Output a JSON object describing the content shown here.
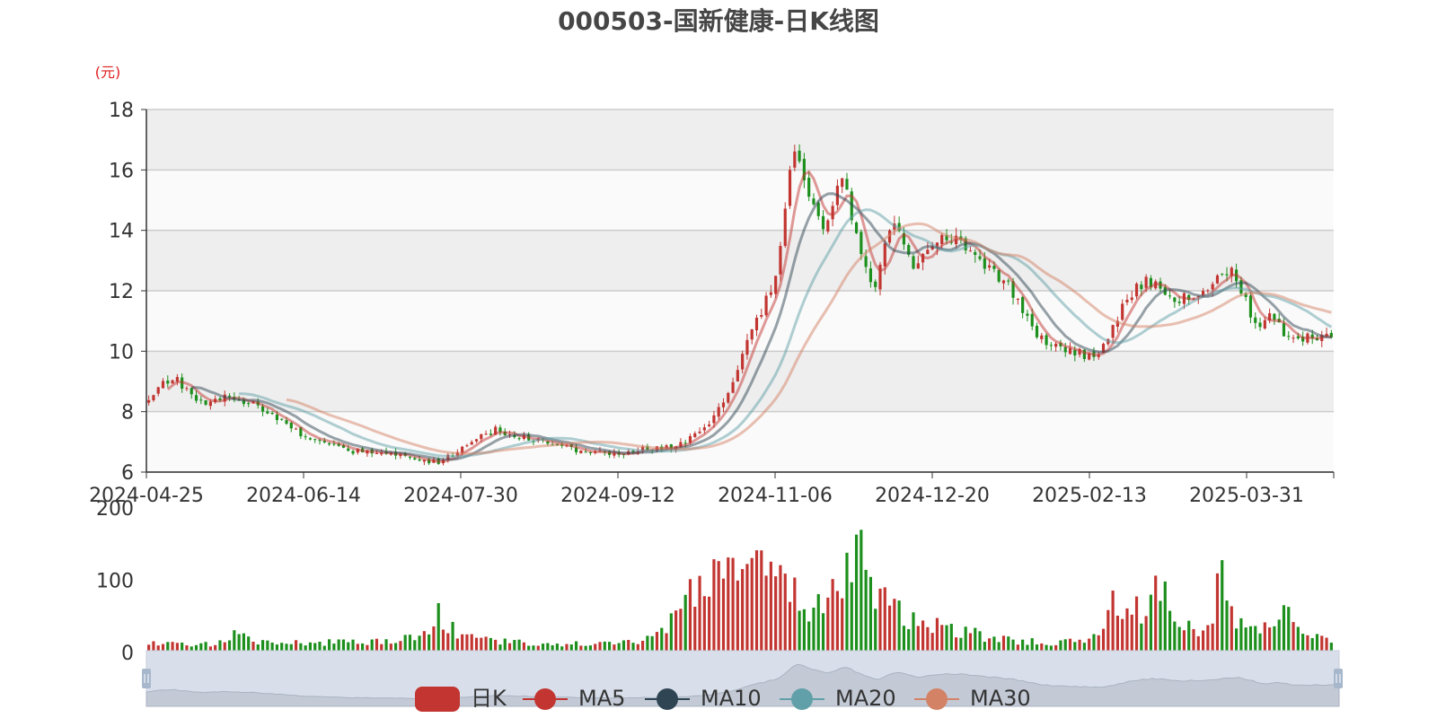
{
  "chart_data": {
    "type": "candlestick",
    "title": "000503-国新健康-日K线图",
    "price_unit": "(元)",
    "price_ylim": [
      6,
      18
    ],
    "price_yticks": [
      "6",
      "8",
      "10",
      "12",
      "14",
      "16",
      "18"
    ],
    "volume_ylim": [
      0,
      200
    ],
    "volume_yticks": [
      "0",
      "100",
      "200"
    ],
    "x_ticks": [
      "2024-04-25",
      "2024-06-14",
      "2024-07-30",
      "2024-09-12",
      "2024-11-06",
      "2024-12-20",
      "2025-02-13",
      "2025-03-31"
    ],
    "up_color": "#c23531",
    "down_color": "#1c8f1c",
    "legend": [
      {
        "name": "日K",
        "color": "#c23531"
      },
      {
        "name": "MA5",
        "color": "#c23531"
      },
      {
        "name": "MA10",
        "color": "#2f4554"
      },
      {
        "name": "MA20",
        "color": "#61a0a8"
      },
      {
        "name": "MA30",
        "color": "#d48265"
      }
    ],
    "close_path": [
      [
        0,
        8.4
      ],
      [
        7,
        9.2
      ],
      [
        15,
        8.3
      ],
      [
        25,
        8.5
      ],
      [
        33,
        8.2
      ],
      [
        45,
        7.3
      ],
      [
        60,
        6.7
      ],
      [
        75,
        6.6
      ],
      [
        88,
        6.3
      ],
      [
        96,
        6.9
      ],
      [
        105,
        7.4
      ],
      [
        115,
        7.1
      ],
      [
        125,
        6.8
      ],
      [
        140,
        6.6
      ],
      [
        160,
        6.9
      ],
      [
        168,
        7.4
      ],
      [
        175,
        8.5
      ],
      [
        183,
        10.8
      ],
      [
        190,
        12.4
      ],
      [
        195,
        16.6
      ],
      [
        200,
        15.3
      ],
      [
        205,
        14.0
      ],
      [
        210,
        15.8
      ],
      [
        215,
        13.5
      ],
      [
        220,
        12.0
      ],
      [
        225,
        14.4
      ],
      [
        232,
        12.8
      ],
      [
        240,
        14.0
      ],
      [
        250,
        13.2
      ],
      [
        260,
        12.2
      ],
      [
        270,
        10.4
      ],
      [
        285,
        9.8
      ],
      [
        290,
        10.2
      ],
      [
        295,
        11.6
      ],
      [
        302,
        12.4
      ],
      [
        312,
        11.7
      ],
      [
        320,
        12.0
      ],
      [
        328,
        12.8
      ],
      [
        335,
        10.8
      ],
      [
        340,
        11.3
      ],
      [
        345,
        10.4
      ],
      [
        358,
        10.5
      ]
    ],
    "volume_path": [
      [
        0,
        12
      ],
      [
        20,
        12
      ],
      [
        25,
        28
      ],
      [
        30,
        18
      ],
      [
        45,
        15
      ],
      [
        60,
        14
      ],
      [
        70,
        16
      ],
      [
        78,
        22
      ],
      [
        85,
        30
      ],
      [
        88,
        75
      ],
      [
        90,
        35
      ],
      [
        95,
        30
      ],
      [
        100,
        20
      ],
      [
        120,
        12
      ],
      [
        140,
        14
      ],
      [
        150,
        16
      ],
      [
        155,
        30
      ],
      [
        165,
        90
      ],
      [
        170,
        110
      ],
      [
        178,
        120
      ],
      [
        182,
        138
      ],
      [
        190,
        100
      ],
      [
        200,
        70
      ],
      [
        210,
        95
      ],
      [
        215,
        140
      ],
      [
        220,
        80
      ],
      [
        230,
        50
      ],
      [
        240,
        35
      ],
      [
        260,
        18
      ],
      [
        275,
        15
      ],
      [
        285,
        15
      ],
      [
        292,
        70
      ],
      [
        300,
        60
      ],
      [
        305,
        120
      ],
      [
        310,
        40
      ],
      [
        320,
        30
      ],
      [
        325,
        110
      ],
      [
        330,
        40
      ],
      [
        340,
        35
      ],
      [
        345,
        62
      ],
      [
        350,
        25
      ],
      [
        358,
        18
      ]
    ],
    "ma_windows": [
      5,
      10,
      20,
      30
    ]
  }
}
